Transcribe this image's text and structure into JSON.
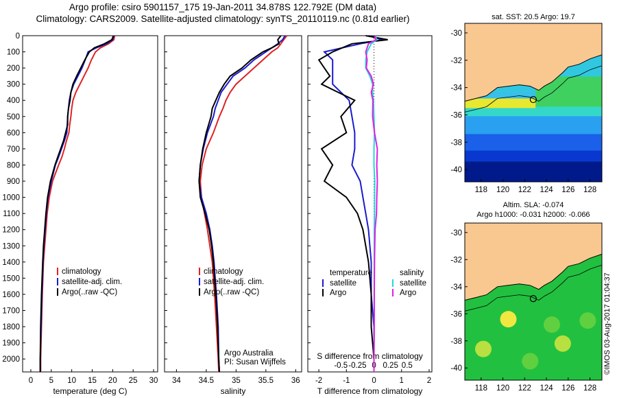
{
  "header": {
    "title_line1": "Argo profile: csiro 5901157_175 19-Jan-2011 34.878S 122.792E (DM data)",
    "title_line2": "Climatology: CARS2009. Satellite-adjusted climatology: synTS_20110119.nc (0.81d earlier)"
  },
  "colors": {
    "climatology": "#dd2222",
    "satellite": "#1a1ad0",
    "argo": "#000000",
    "satellite_s": "#22d8e0",
    "argo_s": "#e020e0",
    "land": "#f8c890"
  },
  "chart_data": [
    {
      "type": "line",
      "id": "temperature",
      "xlabel": "temperature (deg C)",
      "ylabel": "",
      "xlim": [
        -2,
        31
      ],
      "ylim": [
        2080,
        0
      ],
      "x_ticks": [
        "0",
        "5",
        "10",
        "15",
        "20",
        "25",
        "30"
      ],
      "y_ticks": [
        "0",
        "100",
        "200",
        "300",
        "400",
        "500",
        "600",
        "700",
        "800",
        "900",
        "1000",
        "1100",
        "1200",
        "1300",
        "1400",
        "1500",
        "1600",
        "1700",
        "1800",
        "1900",
        "2000"
      ],
      "depth": [
        0,
        25,
        50,
        75,
        100,
        150,
        200,
        250,
        300,
        350,
        400,
        450,
        500,
        550,
        600,
        650,
        700,
        750,
        800,
        900,
        1000,
        1100,
        1200,
        1300,
        1400,
        1600,
        1800,
        2000,
        2080
      ],
      "series": [
        {
          "name": "climatology",
          "values": [
            20.5,
            20.3,
            19,
            17,
            15.8,
            14.8,
            14,
            13,
            12,
            11,
            10.3,
            10,
            9.8,
            9.5,
            9.3,
            8.7,
            8.2,
            7.6,
            6.8,
            5.3,
            4.5,
            4,
            3.7,
            3.4,
            3.1,
            2.8,
            2.6,
            2.4,
            2.4
          ]
        },
        {
          "name": "satellite-adj. clim.",
          "values": [
            20.3,
            20,
            18.5,
            16,
            14,
            13.3,
            12.5,
            11.5,
            10.5,
            9.8,
            9.4,
            9.2,
            9,
            8.9,
            8.8,
            8.2,
            7.5,
            6.8,
            6,
            5,
            4.2,
            3.8,
            3.5,
            3.2,
            3,
            2.7,
            2.5,
            2.3,
            2.3
          ]
        },
        {
          "name": "Argo(..raw -QC)",
          "values": [
            20.2,
            19.8,
            18,
            15.5,
            14.3,
            13.2,
            12.2,
            11.2,
            10.3,
            9.8,
            9.6,
            9.2,
            9,
            9,
            8.5,
            8,
            7.3,
            6.6,
            5.9,
            4.8,
            4.1,
            3.7,
            3.4,
            3.1,
            2.9,
            2.6,
            2.4,
            2.3,
            2.3
          ]
        }
      ],
      "legend": [
        "climatology",
        "satellite-adj. clim.",
        "Argo(..raw -QC)"
      ]
    },
    {
      "type": "line",
      "id": "salinity",
      "xlabel": "salinity",
      "ylabel": "",
      "xlim": [
        33.8,
        36.1
      ],
      "ylim": [
        2080,
        0
      ],
      "x_ticks": [
        "34",
        "34.5",
        "35",
        "35.5",
        "36"
      ],
      "depth": [
        0,
        25,
        50,
        75,
        100,
        150,
        200,
        250,
        300,
        350,
        400,
        450,
        500,
        600,
        700,
        800,
        900,
        1000,
        1100,
        1200,
        1300,
        1400,
        1500,
        1600,
        1800,
        2000,
        2080
      ],
      "series": [
        {
          "name": "climatology",
          "values": [
            35.85,
            35.8,
            35.75,
            35.7,
            35.6,
            35.45,
            35.3,
            35.15,
            35,
            34.9,
            34.83,
            34.78,
            34.72,
            34.62,
            34.5,
            34.43,
            34.4,
            34.42,
            34.47,
            34.52,
            34.56,
            34.6,
            34.62,
            34.64,
            34.67,
            34.7,
            34.71
          ]
        },
        {
          "name": "satellite-adj. clim.",
          "values": [
            35.82,
            35.78,
            35.7,
            35.6,
            35.5,
            35.3,
            35.15,
            34.95,
            34.85,
            34.75,
            34.7,
            34.65,
            34.62,
            34.52,
            34.45,
            34.4,
            34.38,
            34.42,
            34.5,
            34.56,
            34.6,
            34.63,
            34.65,
            34.67,
            34.7,
            34.71,
            34.72
          ]
        },
        {
          "name": "Argo(..raw -QC)",
          "values": [
            35.75,
            35.7,
            35.72,
            35.6,
            35.45,
            35.25,
            35.1,
            34.9,
            34.8,
            34.72,
            34.66,
            34.6,
            34.58,
            34.5,
            34.44,
            34.4,
            34.38,
            34.4,
            34.48,
            34.55,
            34.59,
            34.62,
            34.64,
            34.66,
            34.69,
            34.71,
            34.72
          ]
        }
      ],
      "legend": [
        "climatology",
        "satellite-adj. clim.",
        "Argo(..raw -QC)"
      ],
      "annotation": [
        "Argo Australia",
        "PI: Susan Wijffels"
      ]
    },
    {
      "type": "line",
      "id": "differences",
      "xlabel": "T difference from climatology",
      "xlabel_top": "S difference from climatology",
      "xlim": [
        -2.4,
        2.1
      ],
      "ylim": [
        2080,
        0
      ],
      "x_ticks": [
        "-2",
        "-1",
        "0",
        "1",
        "2"
      ],
      "x_ticks_s": [
        "-0.5",
        "-0.25",
        "0",
        "0.25",
        "0.5"
      ],
      "depth": [
        0,
        25,
        50,
        100,
        150,
        200,
        250,
        300,
        350,
        400,
        500,
        600,
        700,
        800,
        900,
        1000,
        1100,
        1200,
        1400,
        1600,
        1800,
        2000,
        2080
      ],
      "series": [
        {
          "name": "temperature satellite",
          "values": [
            -0.2,
            0.3,
            -0.5,
            -1.8,
            -1.5,
            -1.5,
            -1.5,
            -1.5,
            -1.2,
            -0.9,
            -0.8,
            -0.7,
            -0.7,
            -0.8,
            -0.5,
            -0.4,
            -0.3,
            -0.2,
            -0.1,
            -0.1,
            0,
            0,
            0
          ]
        },
        {
          "name": "temperature Argo",
          "values": [
            -0.3,
            0.5,
            -0.8,
            -1.5,
            -2,
            -1.8,
            -1.6,
            -1.9,
            -1.3,
            -0.7,
            -1.2,
            -1,
            -1.9,
            -1.5,
            -1.8,
            -1,
            -0.6,
            -0.4,
            -0.2,
            -0.1,
            -0.1,
            0,
            0
          ]
        },
        {
          "name": "salinity satellite",
          "values": [
            0.05,
            0.1,
            -0.1,
            -0.25,
            -0.3,
            -0.3,
            -0.15,
            -0.05,
            -0.05,
            -0.02,
            0,
            0.02,
            0,
            0,
            0.03,
            0.02,
            0.02,
            0.01,
            0.01,
            0.01,
            0.01,
            0,
            0
          ]
        },
        {
          "name": "salinity Argo",
          "values": [
            0.03,
            0.07,
            -0.2,
            -0.3,
            -0.25,
            -0.28,
            -0.1,
            -0.02,
            -0.1,
            -0.04,
            -0.05,
            0.02,
            0.12,
            0.1,
            0.12,
            0.1,
            0.09,
            0.04,
            0.02,
            0.01,
            0.01,
            0,
            0
          ]
        }
      ],
      "legend_titles": [
        "temperature",
        "salinity"
      ],
      "legend_items": [
        "satellite",
        "Argo",
        "satellite",
        "Argo"
      ]
    }
  ],
  "maps": {
    "sst": {
      "title": "sat. SST: 20.5 Argo: 19.7"
    },
    "sla": {
      "title1": "Altim. SLA: -0.074",
      "title2": "Argo h1000: -0.031 h2000: -0.066"
    },
    "lon_ticks": [
      "118",
      "120",
      "122",
      "124",
      "126",
      "128"
    ],
    "lat_ticks": [
      "-30",
      "-32",
      "-34",
      "-36",
      "-38",
      "-40"
    ],
    "profile_lat": -34.878,
    "profile_lon": 122.792
  },
  "watermark": "©IMOS 03-Aug-2017 01:04:37"
}
